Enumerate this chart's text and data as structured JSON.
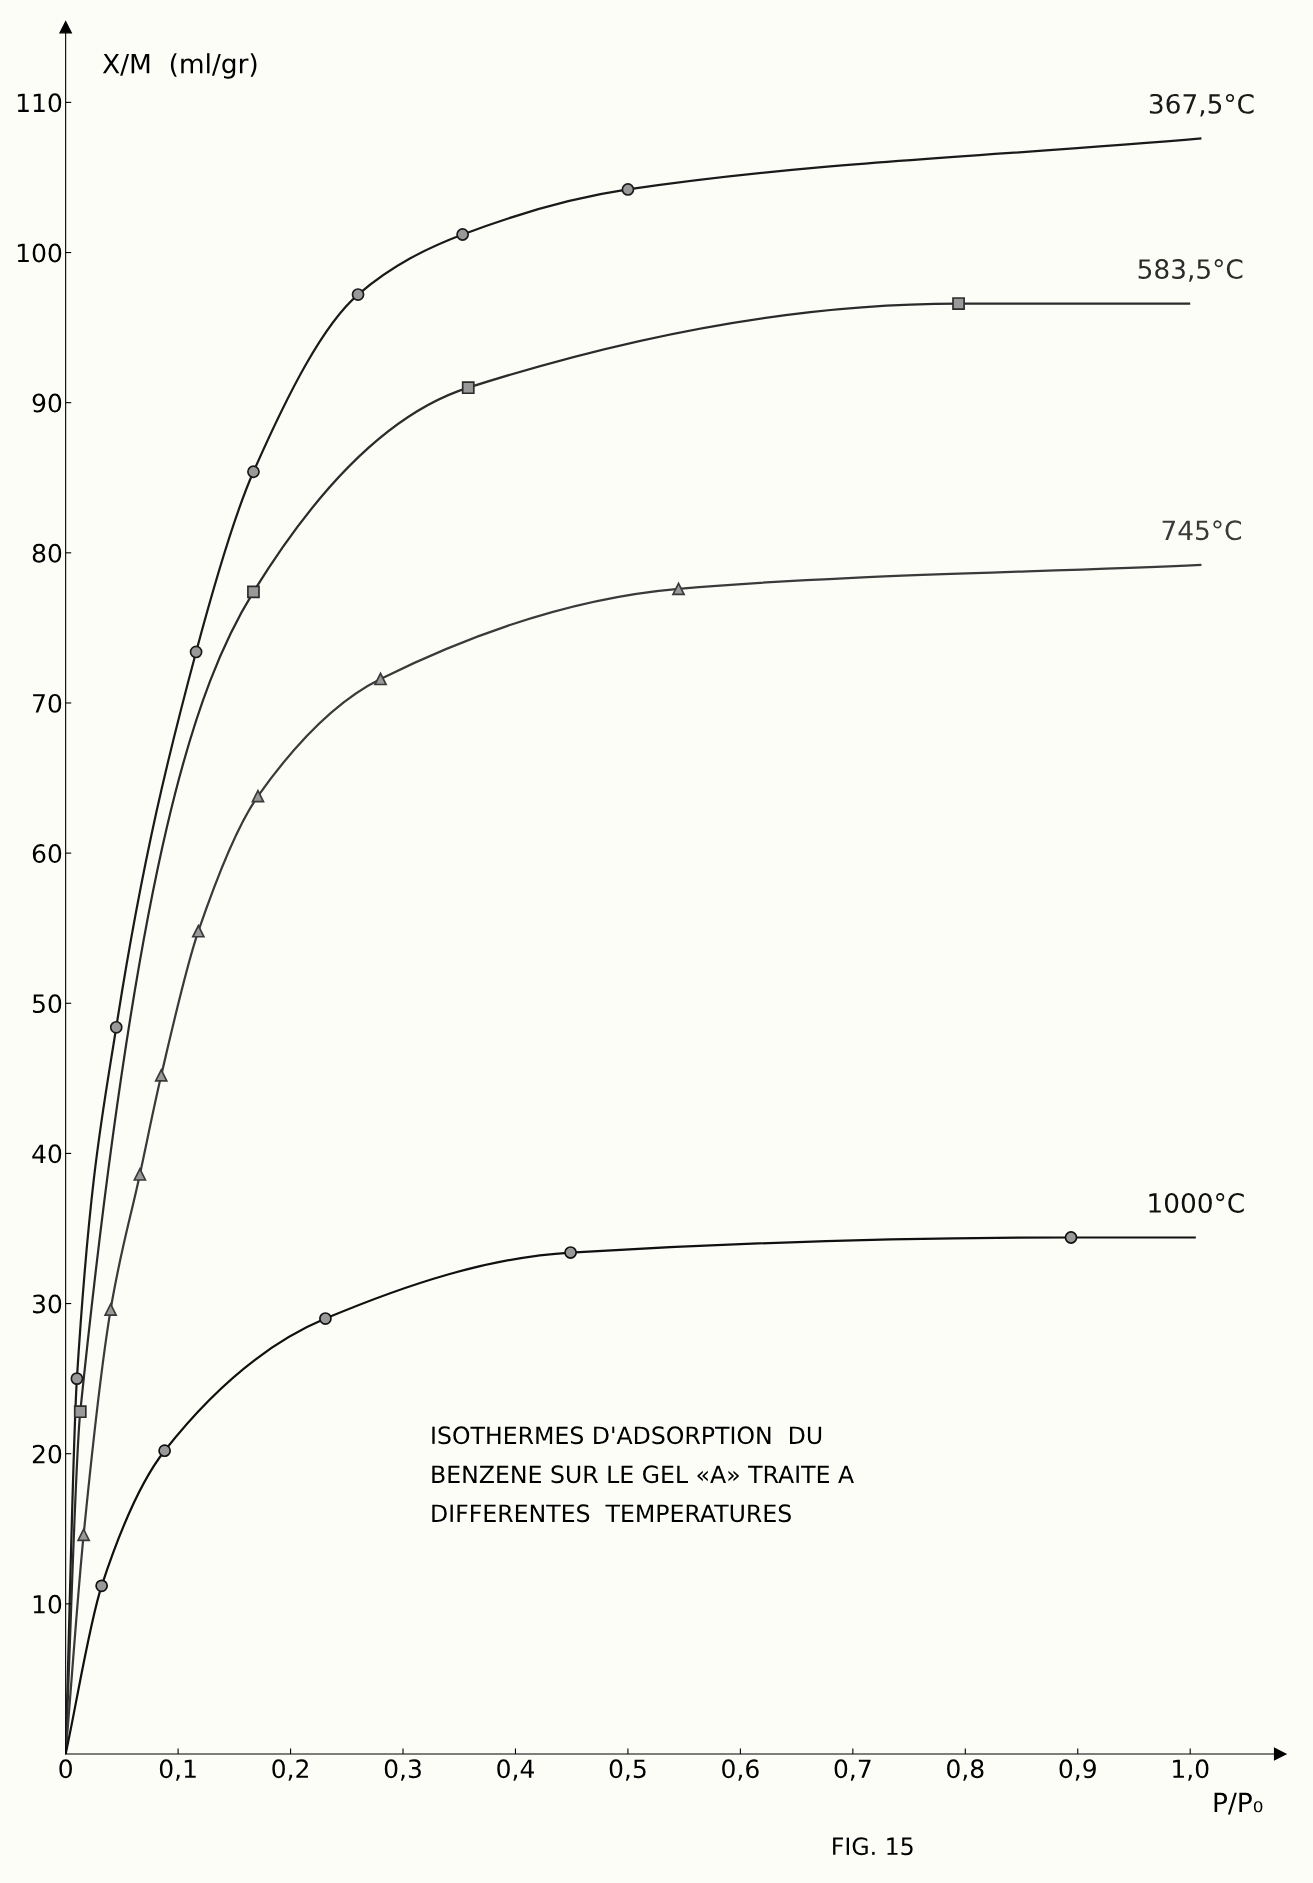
{
  "chart_data": {
    "type": "line",
    "xlabel": "P/P₀",
    "ylabel": "X/M  (ml/gr)",
    "xlim": [
      0,
      1.08
    ],
    "ylim": [
      0,
      115
    ],
    "xticks": [
      0,
      {
        "value": 0.1,
        "label": "0,1"
      },
      {
        "value": 0.2,
        "label": "0,2"
      },
      {
        "value": 0.3,
        "label": "0,3"
      },
      {
        "value": 0.4,
        "label": "0,4"
      },
      {
        "value": 0.5,
        "label": "0,5"
      },
      {
        "value": 0.6,
        "label": "0,6"
      },
      {
        "value": 0.7,
        "label": "0,7"
      },
      {
        "value": 0.8,
        "label": "0,8"
      },
      {
        "value": 0.9,
        "label": "0,9"
      },
      {
        "value": 1.0,
        "label": "1,0"
      }
    ],
    "yticks": [
      10,
      20,
      30,
      40,
      50,
      60,
      70,
      80,
      90,
      100,
      110
    ],
    "grid": false,
    "legend": false,
    "series": [
      {
        "name": "367,5°C",
        "color": "#1a1a1a",
        "x": [
          0,
          0.01,
          0.045,
          0.116,
          0.167,
          0.26,
          0.353,
          0.5,
          1.01
        ],
        "values": [
          0,
          25,
          48.4,
          73.4,
          85.4,
          97.2,
          101.2,
          104.2,
          107.6
        ]
      },
      {
        "type": "scatter",
        "marker": "circle",
        "color": "#1a1a1a",
        "x": [
          0.01,
          0.045,
          0.116,
          0.167,
          0.26,
          0.353,
          0.5
        ],
        "values": [
          25,
          48.4,
          73.4,
          85.4,
          97.2,
          101.2,
          104.2
        ]
      },
      {
        "name": "583,5°C",
        "color": "#2b2b2b",
        "x": [
          0,
          0.013,
          0.167,
          0.358,
          0.794,
          1.0
        ],
        "values": [
          0,
          22.8,
          77.4,
          91,
          96.6,
          96.6
        ]
      },
      {
        "type": "scatter",
        "marker": "square",
        "color": "#2b2b2b",
        "x": [
          0.013,
          0.167,
          0.358,
          0.794
        ],
        "values": [
          22.8,
          77.4,
          91,
          96.6
        ]
      },
      {
        "name": "745°C",
        "color": "#3a3a3a",
        "x": [
          0,
          0.016,
          0.04,
          0.066,
          0.085,
          0.118,
          0.171,
          0.28,
          0.545,
          1.01
        ],
        "values": [
          0,
          14.6,
          29.6,
          38.6,
          45.2,
          54.8,
          63.8,
          71.6,
          77.6,
          79.2
        ]
      },
      {
        "type": "scatter",
        "marker": "triangle",
        "color": "#3a3a3a",
        "x": [
          0.016,
          0.04,
          0.066,
          0.085,
          0.118,
          0.171,
          0.28,
          0.545
        ],
        "values": [
          14.6,
          29.6,
          38.6,
          45.2,
          54.8,
          63.8,
          71.6,
          77.6
        ]
      },
      {
        "name": "1000°C",
        "color": "#101010",
        "x": [
          0,
          0.032,
          0.088,
          0.231,
          0.449,
          0.894,
          1.005
        ],
        "values": [
          0,
          11.2,
          20.2,
          29,
          33.4,
          34.4,
          34.4
        ]
      },
      {
        "type": "scatter",
        "marker": "circle",
        "color": "#101010",
        "x": [
          0.032,
          0.088,
          0.231,
          0.449,
          0.894
        ],
        "values": [
          11.2,
          20.2,
          29,
          33.4,
          34.4
        ]
      }
    ],
    "annotations": [
      "ISOTHERMES D'ADSORPTION  DU\nBENZENE SUR LE GEL «A» TRAITE A\nDIFFERENTES  TEMPERATURES",
      "FIG. 15"
    ]
  }
}
